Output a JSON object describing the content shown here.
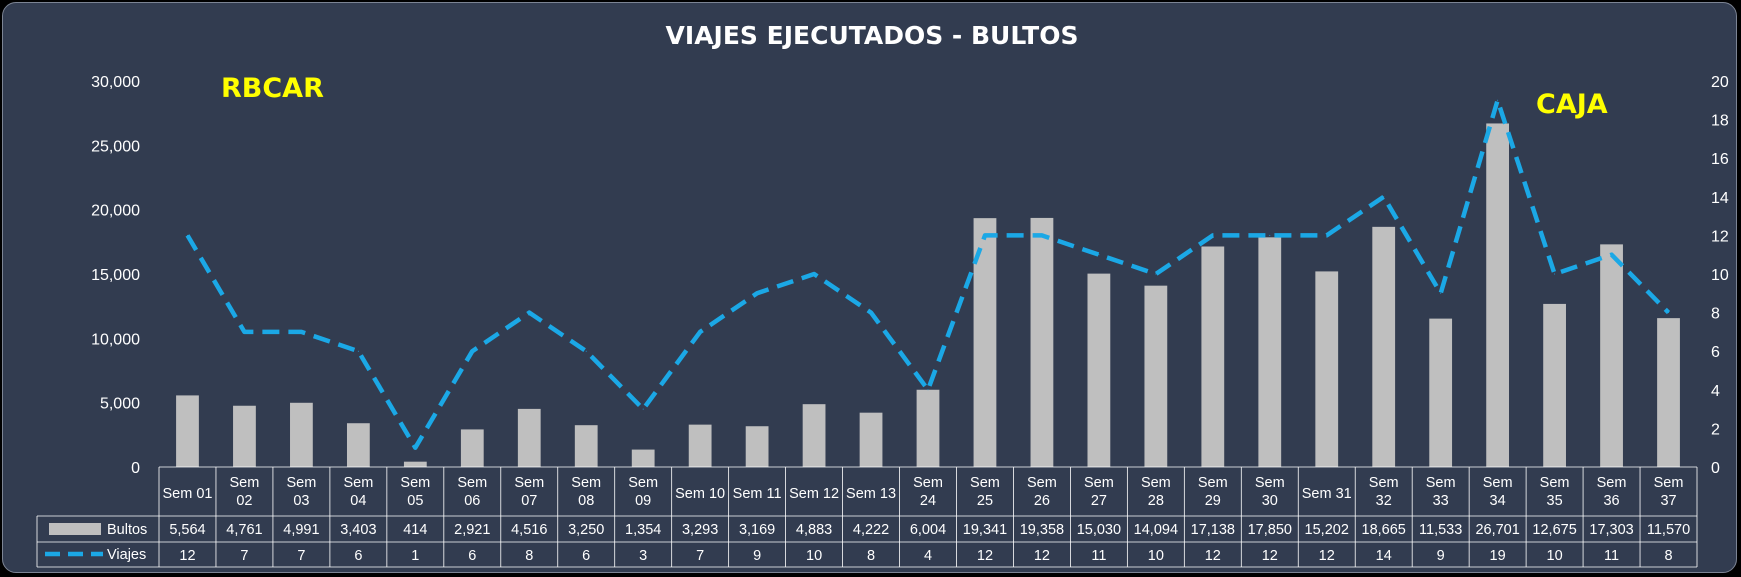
{
  "chart_data": {
    "type": "bar",
    "title": "VIAJES EJECUTADOS - BULTOS",
    "categories": [
      "Sem 01",
      "Sem 02",
      "Sem 03",
      "Sem 04",
      "Sem 05",
      "Sem 06",
      "Sem 07",
      "Sem 08",
      "Sem 09",
      "Sem 10",
      "Sem 11",
      "Sem 12",
      "Sem 13",
      "Sem 24",
      "Sem 25",
      "Sem 26",
      "Sem 27",
      "Sem 28",
      "Sem 29",
      "Sem 30",
      "Sem 31",
      "Sem 32",
      "Sem 33",
      "Sem 34",
      "Sem 35",
      "Sem 36",
      "Sem 37"
    ],
    "series": [
      {
        "name": "Bultos",
        "type": "bar",
        "axis": "left",
        "color": "#bfbfbf",
        "values": [
          5564,
          4761,
          4991,
          3403,
          414,
          2921,
          4516,
          3250,
          1354,
          3293,
          3169,
          4883,
          4222,
          6004,
          19341,
          19358,
          15030,
          14094,
          17138,
          17850,
          15202,
          18665,
          11533,
          26701,
          12675,
          17303,
          11570
        ],
        "labels": [
          "5,564",
          "4,761",
          "4,991",
          "3,403",
          "414",
          "2,921",
          "4,516",
          "3,250",
          "1,354",
          "3,293",
          "3,169",
          "4,883",
          "4,222",
          "6,004",
          "19,341",
          "19,358",
          "15,030",
          "14,094",
          "17,138",
          "17,850",
          "15,202",
          "18,665",
          "11,533",
          "26,701",
          "12,675",
          "17,303",
          "11,570"
        ]
      },
      {
        "name": "Viajes",
        "type": "line",
        "style": "dashed",
        "axis": "right",
        "color": "#1ba8e6",
        "values": [
          12,
          7,
          7,
          6,
          1,
          6,
          8,
          6,
          3,
          7,
          9,
          10,
          8,
          4,
          12,
          12,
          11,
          10,
          12,
          12,
          12,
          14,
          9,
          19,
          10,
          11,
          8
        ],
        "labels": [
          "12",
          "7",
          "7",
          "6",
          "1",
          "6",
          "8",
          "6",
          "3",
          "7",
          "9",
          "10",
          "8",
          "4",
          "12",
          "12",
          "11",
          "10",
          "12",
          "12",
          "12",
          "14",
          "9",
          "19",
          "10",
          "11",
          "8"
        ]
      }
    ],
    "y_left": {
      "min": 0,
      "max": 30000,
      "ticks": [
        "0",
        "5,000",
        "10,000",
        "15,000",
        "20,000",
        "25,000",
        "30,000"
      ]
    },
    "y_right": {
      "min": 0,
      "max": 20,
      "ticks": [
        "0",
        "2",
        "4",
        "6",
        "8",
        "10",
        "12",
        "14",
        "16",
        "18",
        "20"
      ]
    },
    "grid": false,
    "data_table": true,
    "annotations": [
      {
        "text": "RBCAR",
        "color": "#ffff00",
        "placement": "top-left"
      },
      {
        "text": "CAJA",
        "color": "#ffff00",
        "placement": "top-right"
      }
    ]
  }
}
